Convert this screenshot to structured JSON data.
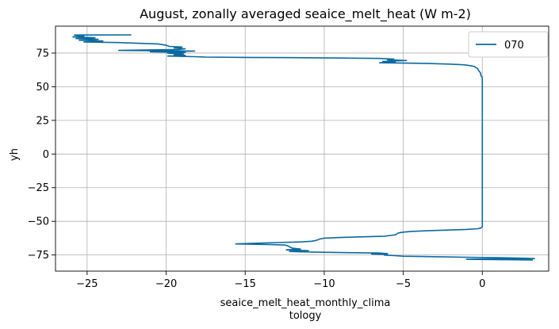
{
  "chart_data": {
    "type": "line",
    "title": "August, zonally averaged seaice_melt_heat (W m-2)",
    "xlabel_lines": [
      "seaice_melt_heat_monthly_clima",
      "tology"
    ],
    "ylabel": "yh",
    "xlim": [
      -27,
      4.2
    ],
    "ylim": [
      -87,
      95
    ],
    "xticks": [
      -25,
      -20,
      -15,
      -10,
      -5,
      0
    ],
    "xtick_labels": [
      "−25",
      "−20",
      "−15",
      "−10",
      "−5",
      "0"
    ],
    "yticks": [
      -75,
      -50,
      -25,
      0,
      25,
      50,
      75
    ],
    "ytick_labels": [
      "−75",
      "−50",
      "−25",
      "0",
      "25",
      "50",
      "75"
    ],
    "grid": true,
    "legend_position": "top-right",
    "colors": {
      "series": "#0a6aa1"
    },
    "series": [
      {
        "name": "070",
        "points": [
          [
            -22.2,
            88.5
          ],
          [
            -25.8,
            88.4
          ],
          [
            -25.2,
            87.6
          ],
          [
            -25.9,
            87.0
          ],
          [
            -24.5,
            86.4
          ],
          [
            -25.7,
            85.8
          ],
          [
            -24.3,
            85.2
          ],
          [
            -25.5,
            84.6
          ],
          [
            -24.0,
            84.0
          ],
          [
            -25.2,
            83.3
          ],
          [
            -23.0,
            82.8
          ],
          [
            -21.8,
            82.3
          ],
          [
            -20.5,
            81.8
          ],
          [
            -20.0,
            80.8
          ],
          [
            -19.8,
            80.0
          ],
          [
            -19.0,
            79.5
          ],
          [
            -19.5,
            78.8
          ],
          [
            -18.8,
            78.2
          ],
          [
            -19.2,
            77.7
          ],
          [
            -23.0,
            77.0
          ],
          [
            -18.2,
            76.5
          ],
          [
            -21.0,
            76.0
          ],
          [
            -18.8,
            75.5
          ],
          [
            -19.9,
            74.9
          ],
          [
            -18.9,
            74.3
          ],
          [
            -19.5,
            73.8
          ],
          [
            -18.8,
            73.3
          ],
          [
            -19.9,
            72.8
          ],
          [
            -18.2,
            72.3
          ],
          [
            -17.5,
            72.0
          ],
          [
            -15.0,
            71.8
          ],
          [
            -12.0,
            71.6
          ],
          [
            -9.0,
            71.3
          ],
          [
            -6.5,
            71.0
          ],
          [
            -5.6,
            70.5
          ],
          [
            -6.0,
            70.0
          ],
          [
            -4.8,
            69.5
          ],
          [
            -6.3,
            68.8
          ],
          [
            -5.5,
            68.3
          ],
          [
            -6.5,
            67.8
          ],
          [
            -4.5,
            67.5
          ],
          [
            -3.2,
            67.2
          ],
          [
            -2.0,
            66.8
          ],
          [
            -1.2,
            66.3
          ],
          [
            -0.8,
            65.7
          ],
          [
            -0.5,
            65.0
          ],
          [
            -0.3,
            63.5
          ],
          [
            -0.2,
            61.5
          ],
          [
            -0.1,
            60.0
          ],
          [
            -0.1,
            58.5
          ],
          [
            0.0,
            57.0
          ],
          [
            0.0,
            56.0
          ],
          [
            0.0,
            40.0
          ],
          [
            0.0,
            20.0
          ],
          [
            0.0,
            0.0
          ],
          [
            0.0,
            -20.0
          ],
          [
            0.0,
            -40.0
          ],
          [
            0.0,
            -54.0
          ],
          [
            -0.1,
            -55.0
          ],
          [
            -0.3,
            -55.5
          ],
          [
            -1.0,
            -56.0
          ],
          [
            -2.2,
            -56.5
          ],
          [
            -3.5,
            -57.0
          ],
          [
            -4.5,
            -57.5
          ],
          [
            -5.0,
            -58.0
          ],
          [
            -5.3,
            -58.6
          ],
          [
            -5.4,
            -59.3
          ],
          [
            -5.5,
            -60.0
          ],
          [
            -5.8,
            -60.5
          ],
          [
            -6.2,
            -61.0
          ],
          [
            -7.5,
            -61.5
          ],
          [
            -9.0,
            -62.0
          ],
          [
            -10.0,
            -62.5
          ],
          [
            -10.3,
            -63.2
          ],
          [
            -10.5,
            -64.2
          ],
          [
            -10.8,
            -64.8
          ],
          [
            -11.5,
            -65.3
          ],
          [
            -13.0,
            -65.8
          ],
          [
            -14.5,
            -66.3
          ],
          [
            -15.6,
            -66.8
          ],
          [
            -13.5,
            -67.2
          ],
          [
            -12.5,
            -67.6
          ],
          [
            -12.3,
            -68.2
          ],
          [
            -12.2,
            -69.0
          ],
          [
            -12.0,
            -70.0
          ],
          [
            -11.5,
            -70.6
          ],
          [
            -12.4,
            -71.2
          ],
          [
            -11.0,
            -71.8
          ],
          [
            -12.2,
            -72.4
          ],
          [
            -10.5,
            -72.9
          ],
          [
            -8.5,
            -73.3
          ],
          [
            -6.5,
            -73.6
          ],
          [
            -6.0,
            -74.0
          ],
          [
            -7.0,
            -74.3
          ],
          [
            -6.0,
            -74.6
          ],
          [
            -6.2,
            -75.1
          ],
          [
            -5.5,
            -75.5
          ],
          [
            -5.0,
            -75.9
          ],
          [
            -3.0,
            -76.3
          ],
          [
            -1.0,
            -76.7
          ],
          [
            1.0,
            -77.0
          ],
          [
            2.5,
            -77.4
          ],
          [
            3.3,
            -77.7
          ],
          [
            0.5,
            -77.9
          ],
          [
            -1.0,
            -78.2
          ],
          [
            1.5,
            -78.5
          ],
          [
            3.2,
            -78.7
          ]
        ]
      }
    ]
  }
}
